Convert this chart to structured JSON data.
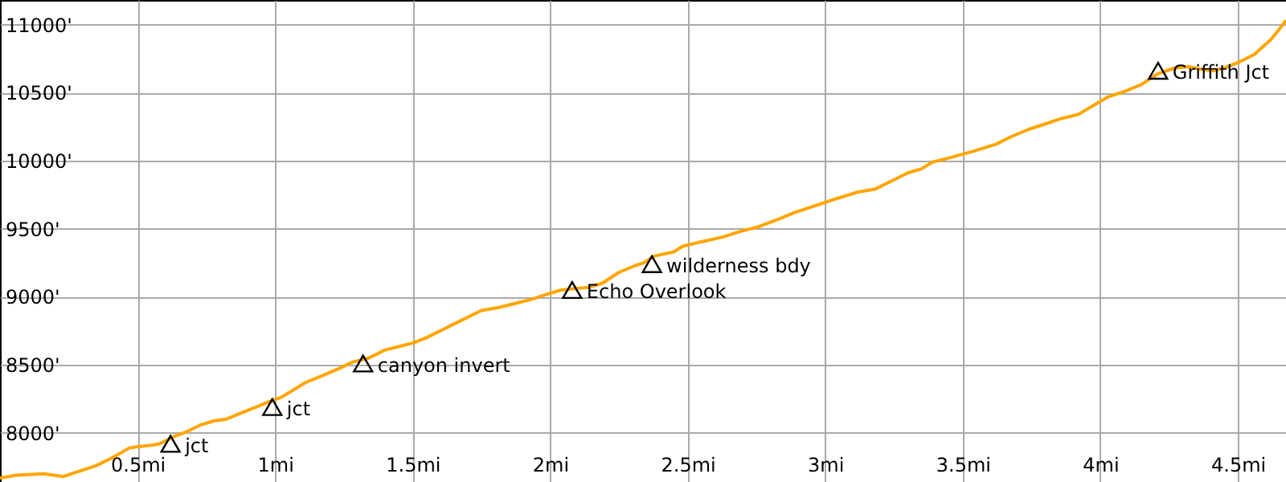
{
  "chart_data": {
    "type": "line",
    "xlim": [
      0,
      4.675
    ],
    "ylim": [
      7640,
      11180
    ],
    "xticks": [
      {
        "value": 0.5,
        "label": "0.5mi"
      },
      {
        "value": 1,
        "label": "1mi"
      },
      {
        "value": 1.5,
        "label": "1.5mi"
      },
      {
        "value": 2,
        "label": "2mi"
      },
      {
        "value": 2.5,
        "label": "2.5mi"
      },
      {
        "value": 3,
        "label": "3mi"
      },
      {
        "value": 3.5,
        "label": "3.5mi"
      },
      {
        "value": 4,
        "label": "4mi"
      },
      {
        "value": 4.5,
        "label": "4.5mi"
      }
    ],
    "yticks": [
      {
        "value": 8000,
        "label": "8000'"
      },
      {
        "value": 8500,
        "label": "8500'"
      },
      {
        "value": 9000,
        "label": "9000'"
      },
      {
        "value": 9500,
        "label": "9500'"
      },
      {
        "value": 10000,
        "label": "10000'"
      },
      {
        "value": 10500,
        "label": "10500'"
      },
      {
        "value": 11000,
        "label": "11000'"
      }
    ],
    "grid": true,
    "series": [
      {
        "color": "#ffa500",
        "line_style": "solid",
        "x": [
          0,
          0.06,
          0.16,
          0.23,
          0.29,
          0.35,
          0.41,
          0.47,
          0.5,
          0.55,
          0.58,
          0.64,
          0.68,
          0.73,
          0.78,
          0.82,
          0.88,
          0.93,
          0.99,
          1.02,
          1.07,
          1.11,
          1.17,
          1.24,
          1.28,
          1.34,
          1.4,
          1.46,
          1.5,
          1.55,
          1.61,
          1.65,
          1.71,
          1.75,
          1.81,
          1.87,
          1.93,
          1.99,
          2.04,
          2.14,
          2.19,
          2.25,
          2.31,
          2.34,
          2.38,
          2.45,
          2.48,
          2.54,
          2.63,
          2.69,
          2.75,
          2.83,
          2.89,
          2.98,
          3.04,
          3.12,
          3.18,
          3.24,
          3.3,
          3.35,
          3.39,
          3.45,
          3.54,
          3.62,
          3.68,
          3.74,
          3.8,
          3.86,
          3.92,
          3.97,
          4.03,
          4.09,
          4.15,
          4.21,
          4.27,
          4.32,
          4.37,
          4.41,
          4.45,
          4.5,
          4.56,
          4.62,
          4.66,
          4.675
        ],
        "values": [
          7670,
          7690,
          7700,
          7680,
          7720,
          7760,
          7820,
          7890,
          7900,
          7910,
          7920,
          7980,
          8010,
          8060,
          8090,
          8100,
          8150,
          8190,
          8240,
          8260,
          8320,
          8370,
          8420,
          8480,
          8520,
          8550,
          8610,
          8640,
          8660,
          8700,
          8760,
          8800,
          8860,
          8900,
          8920,
          8950,
          8980,
          9020,
          9050,
          9070,
          9100,
          9180,
          9230,
          9250,
          9300,
          9330,
          9370,
          9400,
          9440,
          9480,
          9510,
          9570,
          9620,
          9680,
          9720,
          9770,
          9790,
          9850,
          9910,
          9940,
          9990,
          10020,
          10070,
          10120,
          10180,
          10230,
          10270,
          10310,
          10340,
          10400,
          10470,
          10510,
          10560,
          10640,
          10680,
          10690,
          10670,
          10660,
          10680,
          10720,
          10780,
          10890,
          10990,
          11030
        ]
      },
      {
        "type": "scatter",
        "color": "#000000",
        "marker": "triangle",
        "x": [
          0.62,
          0.99,
          1.32,
          2.08,
          2.37,
          4.21
        ],
        "values": [
          7920,
          8190,
          8510,
          9050,
          9240,
          10660
        ]
      }
    ],
    "annotations": [
      {
        "text": "jct",
        "x": 0.62,
        "y": 7920
      },
      {
        "text": "jct",
        "x": 0.99,
        "y": 8190
      },
      {
        "text": "canyon invert",
        "x": 1.32,
        "y": 8510
      },
      {
        "text": "Echo Overlook",
        "x": 2.08,
        "y": 9050
      },
      {
        "text": "wilderness bdy",
        "x": 2.37,
        "y": 9240
      },
      {
        "text": "Griffith Jct",
        "x": 4.21,
        "y": 10660
      }
    ]
  }
}
